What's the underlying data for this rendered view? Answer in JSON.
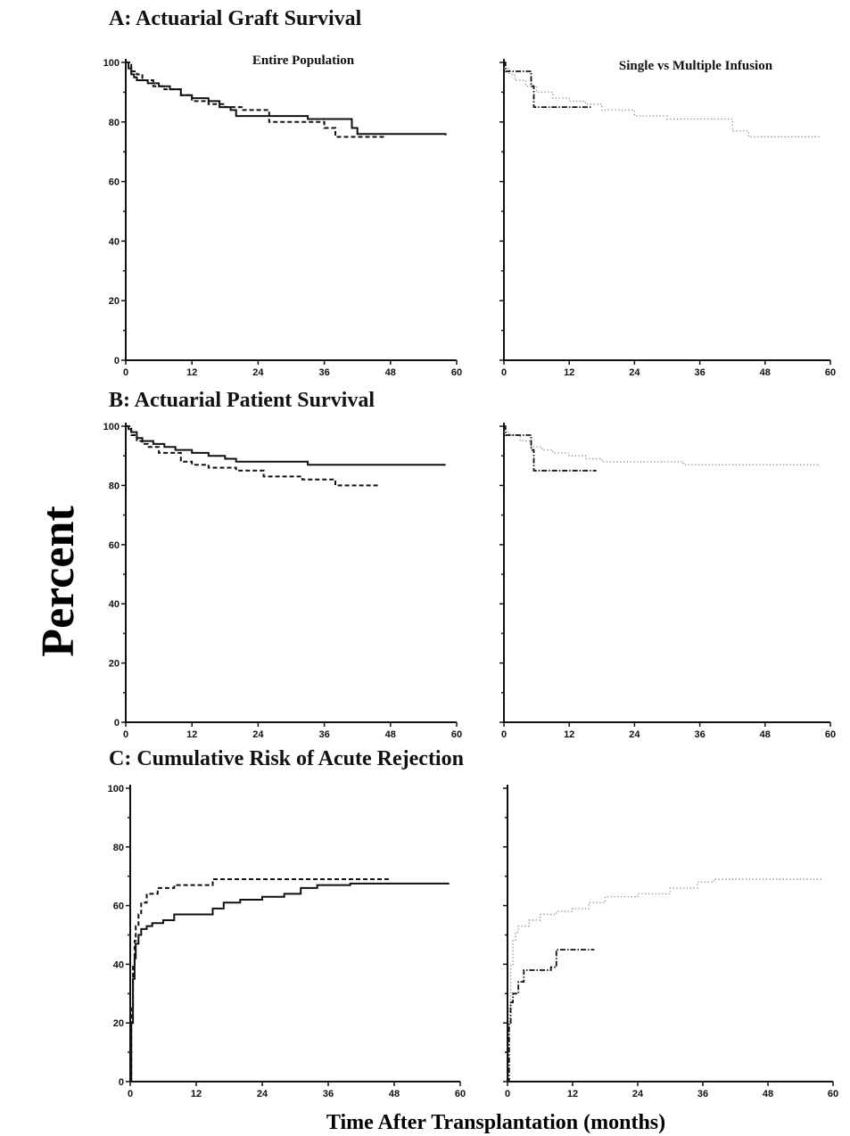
{
  "figure": {
    "ylabel": "Percent",
    "xlabel": "Time After Transplantation (months)"
  },
  "colors": {
    "ink": "#111111",
    "light_series": "#8a8a8a"
  },
  "chart_data": [
    {
      "section": "A",
      "section_title": "A: Actuarial Graft Survival",
      "panel_label": "Entire Population",
      "type": "line",
      "step": true,
      "xlim": [
        0,
        60
      ],
      "ylim": [
        0,
        100
      ],
      "xticks": [
        0,
        12,
        24,
        36,
        48,
        60
      ],
      "yticks": [
        0,
        20,
        40,
        60,
        80,
        100
      ],
      "series": [
        {
          "style": "solid",
          "color": "#111111",
          "x": [
            0,
            0.5,
            1,
            1.5,
            2,
            3,
            4,
            6,
            8,
            10,
            12,
            15,
            17,
            19,
            20,
            24,
            28,
            33,
            38,
            41,
            42,
            58
          ],
          "y": [
            100,
            98,
            96,
            95,
            94,
            94,
            93,
            92,
            91,
            89,
            88,
            87,
            85,
            84,
            82,
            82,
            82,
            81,
            81,
            78,
            76,
            75.5
          ]
        },
        {
          "style": "dashed",
          "color": "#111111",
          "x": [
            0,
            1,
            2,
            3,
            5,
            7,
            10,
            12,
            15,
            18,
            21,
            24,
            26,
            32,
            36,
            38,
            47
          ],
          "y": [
            100,
            97,
            96,
            94,
            92,
            91,
            89,
            87,
            86,
            85,
            84,
            84,
            80,
            80,
            78,
            75,
            75
          ]
        }
      ]
    },
    {
      "section": "A",
      "section_title": "",
      "panel_label": "Single vs Multiple Infusion",
      "type": "line",
      "step": true,
      "xlim": [
        0,
        60
      ],
      "ylim": [
        0,
        100
      ],
      "xticks": [
        0,
        12,
        24,
        36,
        48,
        60
      ],
      "yticks": [],
      "series": [
        {
          "style": "dotted",
          "color": "#8a8a8a",
          "x": [
            0,
            1,
            2,
            4,
            6,
            9,
            12,
            15,
            18,
            24,
            30,
            36,
            42,
            45,
            58
          ],
          "y": [
            98,
            96,
            94,
            92,
            90,
            88,
            87,
            86,
            84,
            82,
            81,
            81,
            77,
            75,
            75
          ]
        },
        {
          "style": "dashdot",
          "color": "#111111",
          "x": [
            0,
            0.3,
            4,
            5,
            5.5,
            16
          ],
          "y": [
            100,
            97,
            97,
            92,
            85,
            85
          ]
        }
      ]
    },
    {
      "section": "B",
      "section_title": "B: Actuarial Patient Survival",
      "panel_label": "",
      "type": "line",
      "step": true,
      "xlim": [
        0,
        60
      ],
      "ylim": [
        0,
        100
      ],
      "xticks": [
        0,
        12,
        24,
        36,
        48,
        60
      ],
      "yticks": [
        0,
        20,
        40,
        60,
        80,
        100
      ],
      "series": [
        {
          "style": "solid",
          "color": "#111111",
          "x": [
            0,
            0.5,
            1,
            2,
            3,
            5,
            7,
            9,
            12,
            15,
            18,
            20,
            24,
            33,
            58
          ],
          "y": [
            100,
            99,
            98,
            96,
            95,
            94,
            93,
            92,
            91,
            90,
            89,
            88,
            88,
            87,
            87
          ]
        },
        {
          "style": "dashed",
          "color": "#111111",
          "x": [
            0,
            1,
            2,
            3,
            4,
            6,
            10,
            12,
            15,
            20,
            25,
            32,
            38,
            46
          ],
          "y": [
            100,
            97,
            95,
            94,
            93,
            91,
            88,
            87,
            86,
            85,
            83,
            82,
            80,
            80
          ]
        }
      ]
    },
    {
      "section": "B",
      "section_title": "",
      "panel_label": "",
      "type": "line",
      "step": true,
      "xlim": [
        0,
        60
      ],
      "ylim": [
        0,
        100
      ],
      "xticks": [
        0,
        12,
        24,
        36,
        48,
        60
      ],
      "yticks": [],
      "series": [
        {
          "style": "dotted",
          "color": "#8a8a8a",
          "x": [
            0,
            1,
            3,
            5,
            7,
            9,
            12,
            15,
            18,
            33,
            58
          ],
          "y": [
            98,
            97,
            95,
            93,
            92,
            91,
            90,
            89,
            88,
            87,
            86.5
          ]
        },
        {
          "style": "dashdot",
          "color": "#111111",
          "x": [
            0,
            0.3,
            4,
            5,
            5.5,
            17
          ],
          "y": [
            100,
            97,
            97,
            92,
            85,
            85
          ]
        }
      ]
    },
    {
      "section": "C",
      "section_title": "C: Cumulative Risk of Acute Rejection",
      "panel_label": "",
      "type": "line",
      "step": true,
      "xlim": [
        0,
        60
      ],
      "ylim": [
        0,
        100
      ],
      "xticks": [
        0,
        12,
        24,
        36,
        48,
        60
      ],
      "yticks": [
        0,
        20,
        40,
        60,
        80,
        100
      ],
      "series": [
        {
          "style": "solid",
          "color": "#111111",
          "x": [
            0,
            0.2,
            0.5,
            0.8,
            1,
            1.5,
            2,
            3,
            4,
            6,
            8,
            12,
            15,
            17,
            20,
            24,
            28,
            31,
            34,
            40,
            58
          ],
          "y": [
            0,
            20,
            35,
            42,
            47,
            50,
            52,
            53,
            54,
            55,
            57,
            57,
            59,
            61,
            62,
            63,
            64,
            66,
            67,
            67.5,
            67.5
          ]
        },
        {
          "style": "dashed",
          "color": "#111111",
          "x": [
            0,
            0.2,
            0.5,
            0.8,
            1,
            1.5,
            2,
            3,
            5,
            8,
            12,
            15,
            20,
            47
          ],
          "y": [
            0,
            25,
            40,
            48,
            53,
            57,
            61,
            64,
            66,
            67,
            67,
            69,
            69,
            69
          ]
        }
      ]
    },
    {
      "section": "C",
      "section_title": "",
      "panel_label": "",
      "type": "line",
      "step": true,
      "xlim": [
        0,
        60
      ],
      "ylim": [
        0,
        100
      ],
      "xticks": [
        0,
        12,
        24,
        36,
        48,
        60
      ],
      "yticks": [],
      "series": [
        {
          "style": "dotted",
          "color": "#8a8a8a",
          "x": [
            0,
            0.3,
            0.6,
            1,
            1.5,
            2,
            4,
            6,
            9,
            12,
            15,
            18,
            24,
            30,
            35,
            38,
            58
          ],
          "y": [
            0,
            25,
            40,
            48,
            51,
            53,
            55,
            57,
            58,
            59,
            61,
            63,
            64,
            66,
            68,
            69,
            69
          ]
        },
        {
          "style": "dashdot",
          "color": "#111111",
          "x": [
            0,
            0.3,
            0.6,
            1,
            2,
            3,
            5,
            8,
            9,
            16
          ],
          "y": [
            0,
            20,
            27,
            30,
            34,
            38,
            38,
            39,
            45,
            45
          ]
        }
      ]
    }
  ]
}
